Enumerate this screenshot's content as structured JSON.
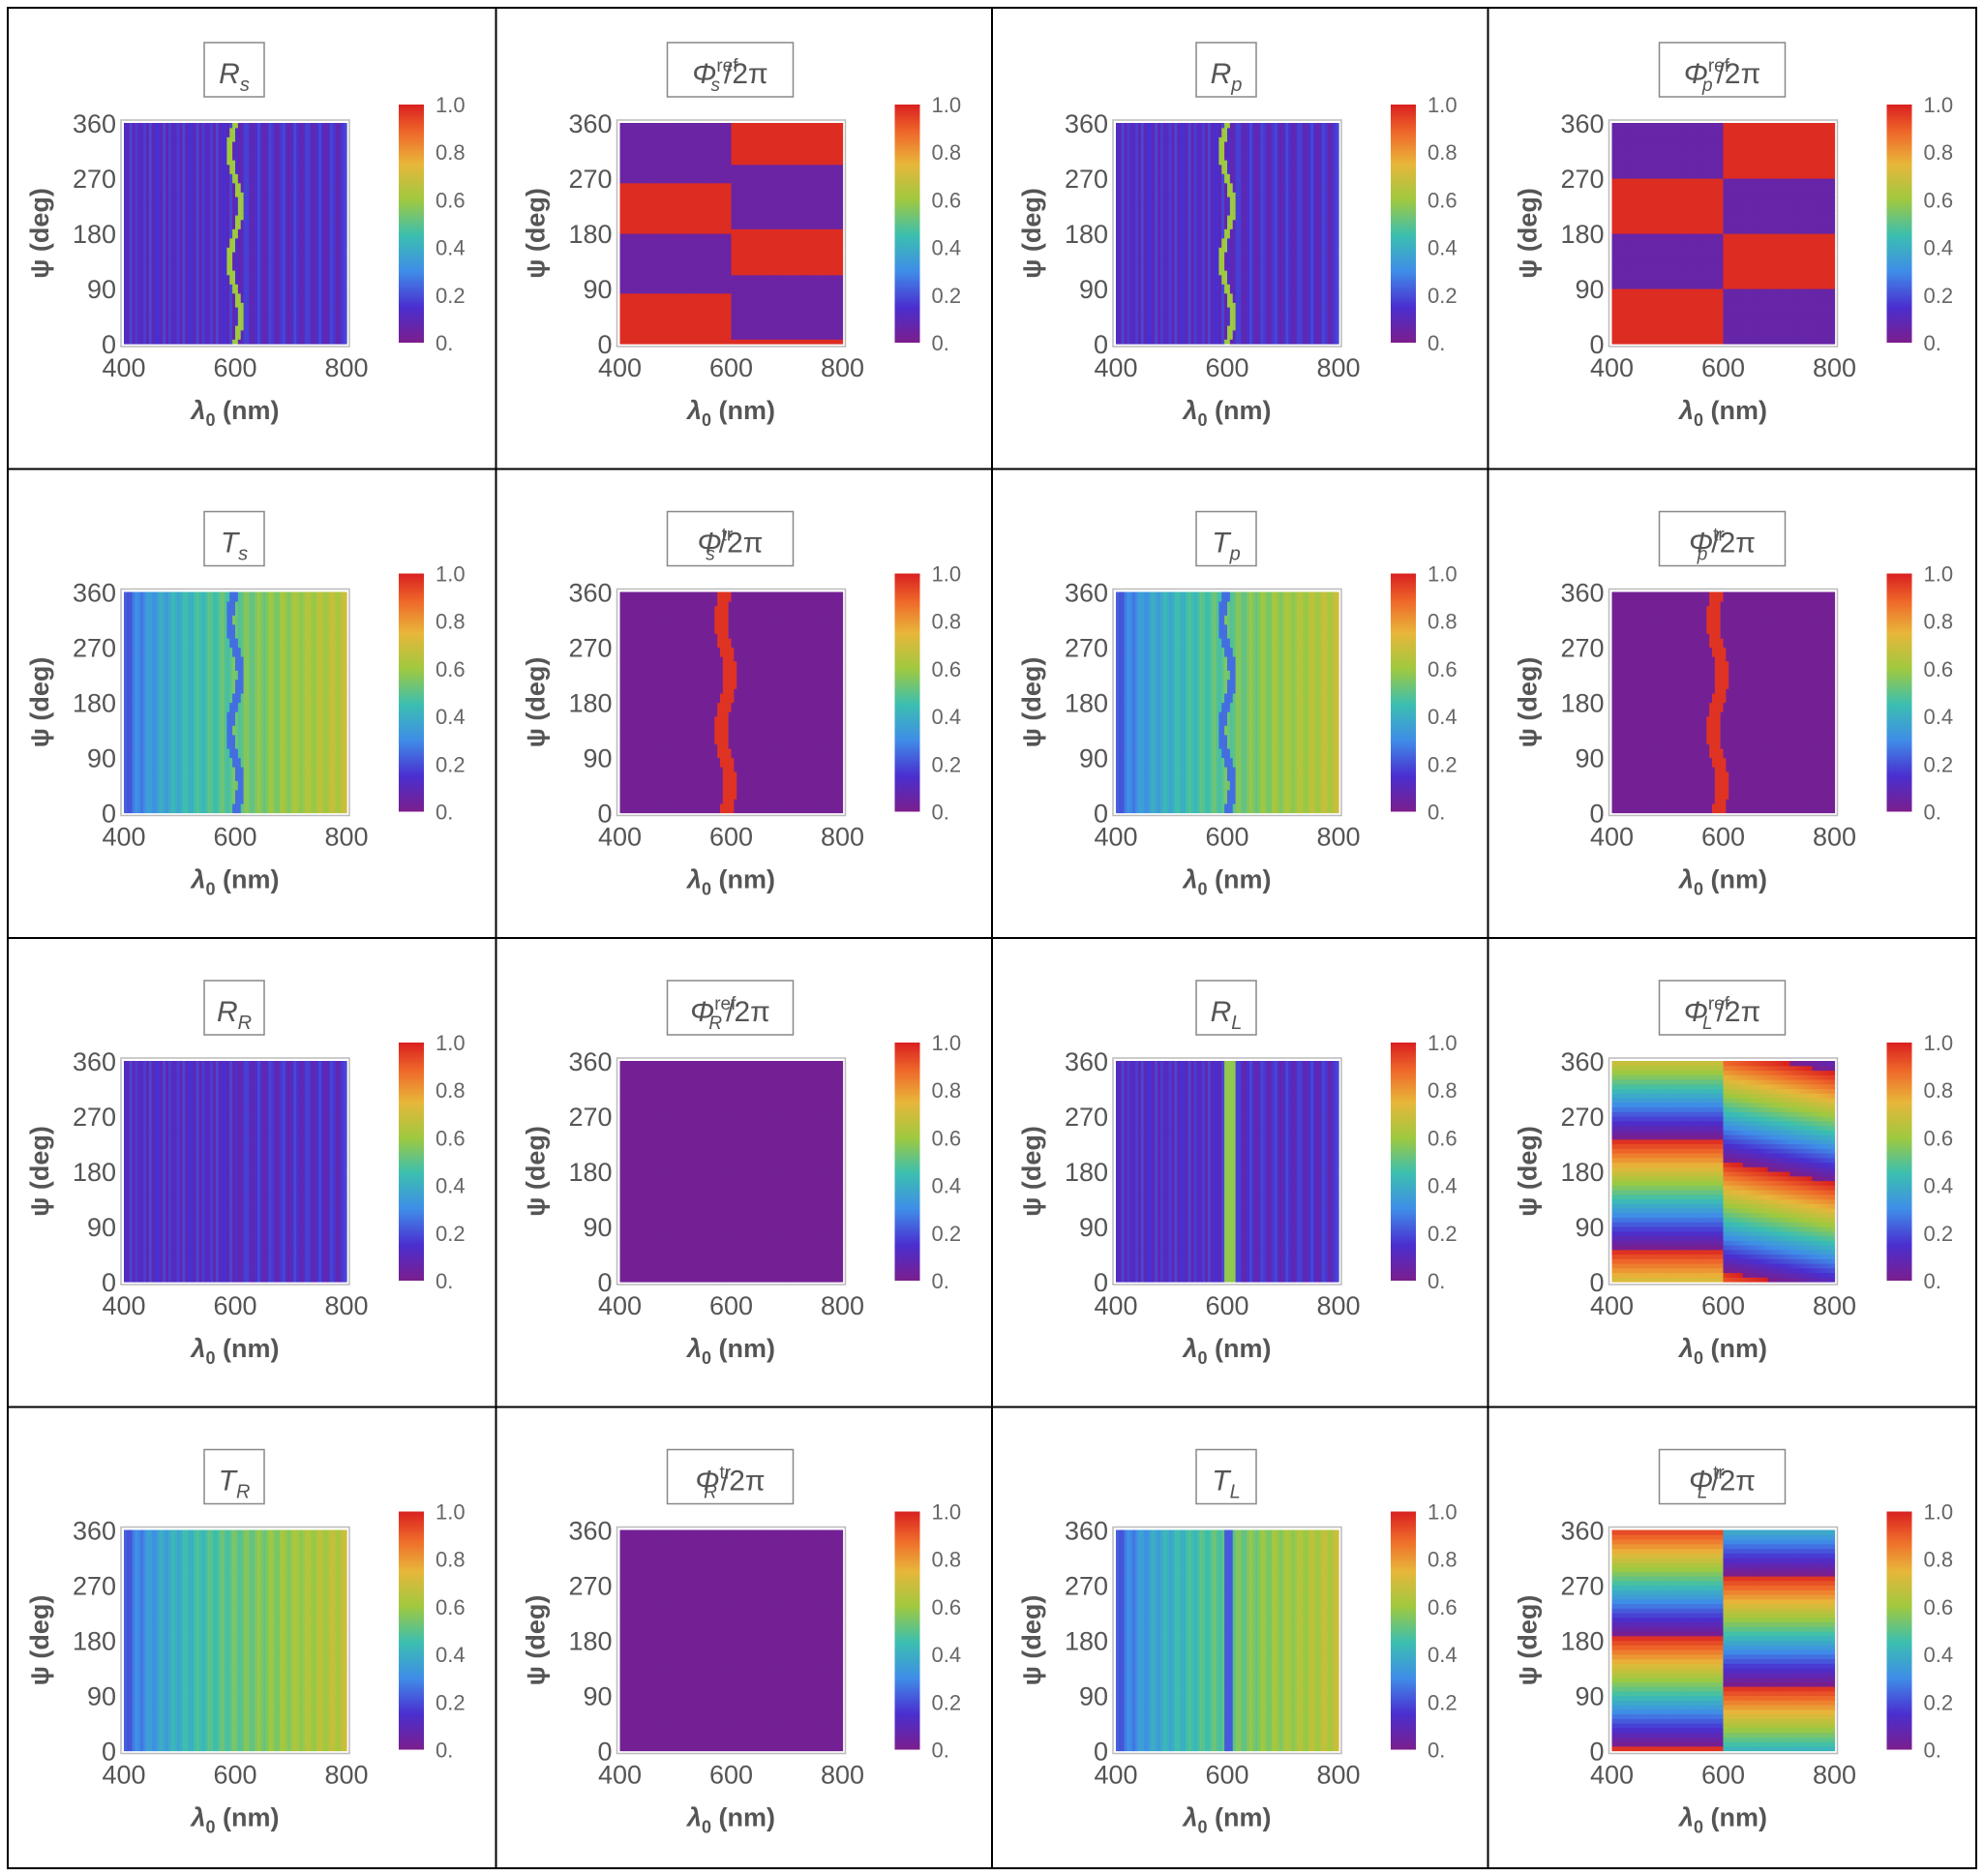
{
  "chart_data": {
    "type": "heatmap",
    "layout": "4x4 grid of density plots",
    "x_axis": {
      "label": "λ₀ (nm)",
      "label_main": "λ",
      "label_sub": "0",
      "label_unit": " (nm)",
      "range": [
        400,
        800
      ],
      "ticks": [
        "400",
        "600",
        "800"
      ]
    },
    "y_axis": {
      "label": "ψ (deg)",
      "label_main": "ψ (deg)",
      "range": [
        0,
        360
      ],
      "ticks": [
        "0",
        "90",
        "180",
        "270",
        "360"
      ]
    },
    "colorbar": {
      "range": [
        0,
        1
      ],
      "ticks": [
        "0.",
        "0.2",
        "0.4",
        "0.6",
        "0.8",
        "1.0"
      ],
      "colormap": "rainbow"
    },
    "panels": [
      {
        "id": "Rs",
        "title_main": "R",
        "title_sub": "s",
        "title_sup": "",
        "title_suffix": "",
        "pattern": "fringes_low",
        "feature": "wiggle_green",
        "title": "R_s"
      },
      {
        "id": "Phi_s_ref",
        "title_main": "Φ",
        "title_sub": "s",
        "title_sup": "ref",
        "title_suffix": "/2π",
        "pattern": "phase_bands_s",
        "title": "Φ_s^ref/2π"
      },
      {
        "id": "Rp",
        "title_main": "R",
        "title_sub": "p",
        "title_sup": "",
        "title_suffix": "",
        "pattern": "fringes_low",
        "feature": "wiggle_green",
        "title": "R_p"
      },
      {
        "id": "Phi_p_ref",
        "title_main": "Φ",
        "title_sub": "p",
        "title_sup": "ref",
        "title_suffix": "/2π",
        "pattern": "phase_bands_p",
        "title": "Φ_p^ref/2π"
      },
      {
        "id": "Ts",
        "title_main": "T",
        "title_sub": "s",
        "title_sup": "",
        "title_suffix": "",
        "pattern": "transmission",
        "feature": "wiggle_blue",
        "title": "T_s"
      },
      {
        "id": "Phi_s_tr",
        "title_main": "Φ",
        "title_sub": "s",
        "title_sup": "tr",
        "title_suffix": "/2π",
        "pattern": "flat_purple",
        "feature": "red_stripe",
        "title": "Φ_s^tr/2π"
      },
      {
        "id": "Tp",
        "title_main": "T",
        "title_sub": "p",
        "title_sup": "",
        "title_suffix": "",
        "pattern": "transmission",
        "feature": "wiggle_blue",
        "title": "T_p"
      },
      {
        "id": "Phi_p_tr",
        "title_main": "Φ",
        "title_sub": "p",
        "title_sup": "tr",
        "title_suffix": "/2π",
        "pattern": "flat_purple",
        "feature": "red_stripe",
        "title": "Φ_p^tr/2π"
      },
      {
        "id": "RR",
        "title_main": "R",
        "title_sub": "R",
        "title_sup": "",
        "title_suffix": "",
        "pattern": "fringes_low",
        "title": "R_R"
      },
      {
        "id": "Phi_R_ref",
        "title_main": "Φ",
        "title_sub": "R",
        "title_sup": "ref",
        "title_suffix": "/2π",
        "pattern": "flat_purple",
        "title": "Φ_R^ref/2π"
      },
      {
        "id": "RL",
        "title_main": "R",
        "title_sub": "L",
        "title_sup": "",
        "title_suffix": "",
        "pattern": "fringes_low",
        "feature": "straight_green",
        "title": "R_L"
      },
      {
        "id": "Phi_L_ref",
        "title_main": "Φ",
        "title_sub": "L",
        "title_sup": "ref",
        "title_suffix": "/2π",
        "pattern": "phase_rainbow_ref",
        "title": "Φ_L^ref/2π"
      },
      {
        "id": "TR",
        "title_main": "T",
        "title_sub": "R",
        "title_sup": "",
        "title_suffix": "",
        "pattern": "transmission",
        "title": "T_R"
      },
      {
        "id": "Phi_R_tr",
        "title_main": "Φ",
        "title_sub": "R",
        "title_sup": "tr",
        "title_suffix": "/2π",
        "pattern": "flat_purple",
        "title": "Φ_R^tr/2π"
      },
      {
        "id": "TL",
        "title_main": "T",
        "title_sub": "L",
        "title_sup": "",
        "title_suffix": "",
        "pattern": "transmission",
        "feature": "straight_blue",
        "title": "T_L"
      },
      {
        "id": "Phi_L_tr",
        "title_main": "Φ",
        "title_sub": "L",
        "title_sup": "tr",
        "title_suffix": "/2π",
        "pattern": "phase_rainbow_tr",
        "title": "Φ_L^tr/2π"
      }
    ]
  }
}
